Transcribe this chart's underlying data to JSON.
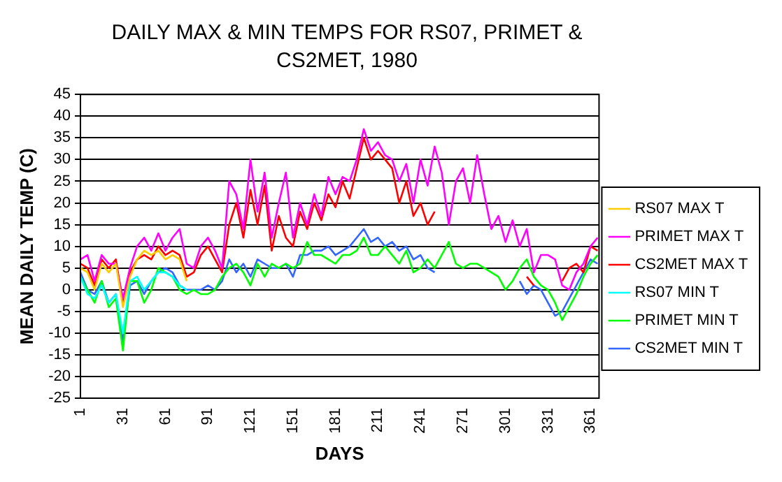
{
  "chart_data": {
    "type": "line",
    "title": "DAILY MAX & MIN TEMPS FOR RS07, PRIMET & CS2MET, 1980",
    "xlabel": "DAYS",
    "ylabel": "MEAN DAILY TEMP (C)",
    "x": [
      1,
      6,
      11,
      16,
      21,
      26,
      31,
      36,
      41,
      46,
      51,
      56,
      61,
      66,
      71,
      76,
      81,
      86,
      91,
      96,
      101,
      106,
      111,
      116,
      121,
      126,
      131,
      136,
      141,
      146,
      151,
      156,
      161,
      166,
      171,
      176,
      181,
      186,
      191,
      196,
      201,
      206,
      211,
      216,
      221,
      226,
      231,
      236,
      241,
      246,
      251,
      256,
      261,
      266,
      271,
      276,
      281,
      286,
      291,
      296,
      301,
      306,
      311,
      316,
      321,
      326,
      331,
      336,
      341,
      346,
      351,
      356,
      361,
      366
    ],
    "xlim": [
      1,
      367
    ],
    "xticks": [
      1,
      31,
      61,
      91,
      121,
      151,
      181,
      211,
      241,
      271,
      301,
      331,
      361
    ],
    "ylim": [
      -25,
      45
    ],
    "yticks": [
      -25,
      -20,
      -15,
      -10,
      -5,
      0,
      5,
      10,
      15,
      20,
      25,
      30,
      35,
      40,
      45
    ],
    "grid": "y",
    "legend": "right",
    "marker": "none",
    "line_style": "solid",
    "series": [
      {
        "name": "RS07 MAX T",
        "color": "#ffcc00",
        "values": [
          5,
          4,
          0,
          6,
          4,
          6,
          -4,
          3,
          7,
          9,
          8,
          9,
          7,
          8,
          7,
          2,
          null,
          null,
          null,
          null,
          null,
          null,
          null,
          null,
          null,
          null,
          null,
          null,
          null,
          null,
          null,
          null,
          null,
          null,
          null,
          null,
          null,
          null,
          null,
          null,
          null,
          null,
          null,
          null,
          null,
          null,
          null,
          null,
          null,
          null,
          null,
          null,
          null,
          null,
          null,
          null,
          null,
          null,
          null,
          null,
          null,
          null,
          null,
          null,
          null,
          null,
          null,
          null,
          null,
          null,
          null,
          null,
          null,
          null
        ]
      },
      {
        "name": "PRIMET MAX T",
        "color": "#ff00ff",
        "values": [
          7,
          8,
          2,
          8,
          6,
          6,
          -2,
          5,
          10,
          12,
          9,
          13,
          9,
          12,
          14,
          6,
          5,
          10,
          12,
          9,
          5,
          25,
          22,
          14,
          30,
          18,
          27,
          12,
          20,
          27,
          12,
          20,
          15,
          22,
          17,
          26,
          22,
          26,
          25,
          30,
          37,
          32,
          34,
          31,
          30,
          25,
          29,
          20,
          30,
          24,
          33,
          27,
          15,
          25,
          28,
          20,
          31,
          22,
          14,
          17,
          11,
          16,
          10,
          14,
          4,
          8,
          8,
          7,
          1,
          0,
          4,
          6,
          10,
          12
        ]
      },
      {
        "name": "CS2MET MAX T",
        "color": "#ff0000",
        "values": [
          6,
          5,
          1,
          7,
          5,
          7,
          -3,
          4,
          7,
          8,
          7,
          10,
          8,
          9,
          8,
          3,
          4,
          8,
          10,
          7,
          4,
          15,
          20,
          12,
          23,
          15,
          24,
          9,
          17,
          12,
          10,
          18,
          14,
          20,
          16,
          22,
          19,
          25,
          21,
          28,
          35,
          30,
          32,
          30,
          28,
          20,
          25,
          17,
          20,
          15,
          18,
          null,
          null,
          null,
          null,
          null,
          null,
          null,
          null,
          null,
          null,
          null,
          null,
          3,
          1,
          null,
          null,
          null,
          2,
          5,
          6,
          4,
          10,
          9
        ]
      },
      {
        "name": "RS07 MIN T",
        "color": "#00ffff",
        "values": [
          3,
          -1,
          -2,
          1,
          -3,
          -1,
          -10,
          2,
          3,
          0,
          2,
          4,
          4,
          3,
          1,
          0,
          null,
          null,
          null,
          null,
          null,
          null,
          null,
          null,
          null,
          null,
          null,
          null,
          null,
          null,
          null,
          null,
          null,
          null,
          null,
          null,
          null,
          null,
          null,
          null,
          null,
          null,
          null,
          null,
          null,
          null,
          null,
          null,
          null,
          null,
          null,
          null,
          null,
          null,
          null,
          null,
          null,
          null,
          null,
          null,
          null,
          null,
          null,
          null,
          null,
          null,
          null,
          null,
          null,
          null,
          null,
          null,
          null,
          null
        ]
      },
      {
        "name": "PRIMET MIN T",
        "color": "#00ff00",
        "values": [
          3,
          0,
          -3,
          2,
          -4,
          -2,
          -14,
          2,
          2,
          -3,
          0,
          5,
          4,
          3,
          0,
          -1,
          0,
          -1,
          -1,
          0,
          3,
          5,
          6,
          4,
          1,
          6,
          3,
          6,
          5,
          6,
          5,
          6,
          11,
          8,
          8,
          7,
          6,
          8,
          8,
          9,
          12,
          8,
          8,
          10,
          8,
          6,
          9,
          4,
          5,
          7,
          5,
          8,
          11,
          6,
          5,
          6,
          6,
          5,
          4,
          3,
          0,
          2,
          5,
          7,
          3,
          1,
          0,
          -3,
          -7,
          -4,
          -1,
          3,
          6,
          8
        ]
      },
      {
        "name": "CS2MET MIN T",
        "color": "#3366ff",
        "values": [
          4,
          0,
          -1,
          2,
          -3,
          -1,
          -12,
          1,
          2,
          -1,
          2,
          4,
          5,
          4,
          1,
          0,
          0,
          0,
          1,
          0,
          2,
          7,
          4,
          6,
          3,
          7,
          6,
          5,
          5,
          6,
          3,
          8,
          8,
          9,
          9,
          10,
          8,
          9,
          10,
          12,
          14,
          11,
          12,
          10,
          11,
          9,
          10,
          7,
          8,
          5,
          4,
          null,
          null,
          null,
          null,
          null,
          null,
          null,
          null,
          null,
          null,
          null,
          2,
          -1,
          1,
          0,
          -3,
          -6,
          -5,
          -2,
          1,
          4,
          7,
          6
        ]
      }
    ]
  }
}
